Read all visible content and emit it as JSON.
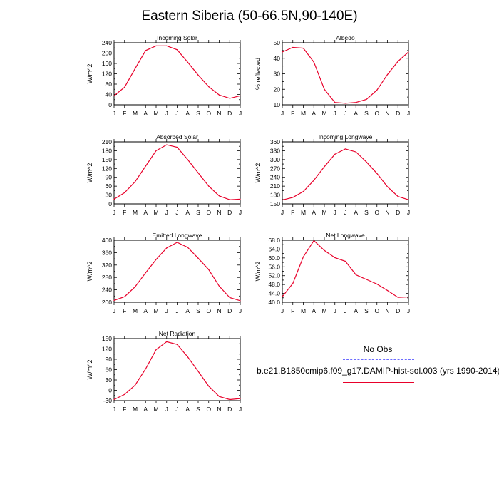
{
  "title": "Eastern Siberia (50-66.5N,90-140E)",
  "colors": {
    "model": "#e8002a",
    "obs": "#6b6bff",
    "axis": "#000000"
  },
  "legend": {
    "obs_label": "No Obs",
    "model_label": "b.e21.B1850cmip6.f09_g17.DAMIP-hist-sol.003 (yrs 1990-2014)"
  },
  "chart_data": [
    {
      "type": "line",
      "title": "Incoming Solar",
      "ylabel": "W/m^2",
      "x": [
        "J",
        "F",
        "M",
        "A",
        "M",
        "J",
        "J",
        "A",
        "S",
        "O",
        "N",
        "D",
        "J"
      ],
      "series": [
        {
          "values": [
            35,
            68,
            140,
            210,
            228,
            228,
            213,
            165,
            115,
            70,
            38,
            25,
            35
          ]
        }
      ],
      "ylim": [
        0,
        240
      ],
      "yticks": [
        "0",
        "20",
        "40",
        "60",
        "80",
        "100",
        "120",
        "140",
        "160",
        "180",
        "200",
        "220",
        "240"
      ],
      "ytick_labels": [
        "0",
        "",
        "40",
        "",
        "80",
        "",
        "120",
        "",
        "160",
        "",
        "200",
        "",
        "240"
      ]
    },
    {
      "type": "line",
      "title": "Albedo",
      "ylabel": "% reflected",
      "x": [
        "J",
        "F",
        "M",
        "A",
        "M",
        "J",
        "J",
        "A",
        "S",
        "O",
        "N",
        "D",
        "J"
      ],
      "series": [
        {
          "values": [
            44,
            47,
            46.5,
            37.5,
            20,
            11.5,
            11,
            11.5,
            13.5,
            19.5,
            29.5,
            38,
            44
          ]
        }
      ],
      "ylim": [
        10,
        50
      ],
      "yticks": [
        "10",
        "15",
        "20",
        "25",
        "30",
        "35",
        "40",
        "45",
        "50"
      ],
      "ytick_labels": [
        "10",
        "",
        "20",
        "",
        "30",
        "",
        "40",
        "",
        "50"
      ]
    },
    {
      "type": "line",
      "title": "Absorbed Solar",
      "ylabel": "W/m^2",
      "x": [
        "J",
        "F",
        "M",
        "A",
        "M",
        "J",
        "J",
        "A",
        "S",
        "O",
        "N",
        "D",
        "J"
      ],
      "series": [
        {
          "values": [
            16,
            38,
            75,
            128,
            180,
            200,
            192,
            150,
            105,
            60,
            27,
            14,
            16
          ]
        }
      ],
      "ylim": [
        0,
        210
      ],
      "yticks": [
        "0",
        "15",
        "30",
        "45",
        "60",
        "75",
        "90",
        "105",
        "120",
        "135",
        "150",
        "165",
        "180",
        "195",
        "210"
      ],
      "ytick_labels": [
        "0",
        "",
        "30",
        "",
        "60",
        "",
        "90",
        "",
        "120",
        "",
        "150",
        "",
        "180",
        "",
        "210"
      ]
    },
    {
      "type": "line",
      "title": "Incoming Longwave",
      "ylabel": "W/m^2",
      "x": [
        "J",
        "F",
        "M",
        "A",
        "M",
        "J",
        "J",
        "A",
        "S",
        "O",
        "N",
        "D",
        "J"
      ],
      "series": [
        {
          "values": [
            163,
            172,
            192,
            230,
            276,
            318,
            336,
            326,
            292,
            253,
            208,
            175,
            164
          ]
        }
      ],
      "ylim": [
        150,
        360
      ],
      "yticks": [
        "150",
        "165",
        "180",
        "195",
        "210",
        "225",
        "240",
        "255",
        "270",
        "285",
        "300",
        "315",
        "330",
        "345",
        "360"
      ],
      "ytick_labels": [
        "150",
        "",
        "180",
        "",
        "210",
        "",
        "240",
        "",
        "270",
        "",
        "300",
        "",
        "330",
        "",
        "360"
      ]
    },
    {
      "type": "line",
      "title": "Emitted Longwave",
      "ylabel": "W/m^2",
      "x": [
        "J",
        "F",
        "M",
        "A",
        "M",
        "J",
        "J",
        "A",
        "S",
        "O",
        "N",
        "D",
        "J"
      ],
      "series": [
        {
          "values": [
            206,
            218,
            250,
            295,
            338,
            375,
            393,
            377,
            342,
            305,
            252,
            215,
            205
          ]
        }
      ],
      "ylim": [
        200,
        400
      ],
      "yticks": [
        "200",
        "220",
        "240",
        "260",
        "280",
        "300",
        "320",
        "340",
        "360",
        "380",
        "400"
      ],
      "ytick_labels": [
        "200",
        "",
        "240",
        "",
        "280",
        "",
        "320",
        "",
        "360",
        "",
        "400"
      ]
    },
    {
      "type": "line",
      "title": "Net Longwave",
      "ylabel": "W/m^2",
      "x": [
        "J",
        "F",
        "M",
        "A",
        "M",
        "J",
        "J",
        "A",
        "S",
        "O",
        "N",
        "D",
        "J"
      ],
      "series": [
        {
          "values": [
            42.5,
            48.5,
            60.5,
            67.8,
            63.4,
            60.1,
            58.5,
            52.4,
            50.3,
            48.2,
            45.3,
            42.2,
            42.4
          ]
        }
      ],
      "ylim": [
        40,
        68
      ],
      "yticks": [
        "40.0",
        "42.0",
        "44.0",
        "46.0",
        "48.0",
        "50.0",
        "52.0",
        "54.0",
        "56.0",
        "58.0",
        "60.0",
        "62.0",
        "64.0",
        "66.0",
        "68.0"
      ],
      "ytick_labels": [
        "40.0",
        "",
        "44.0",
        "",
        "48.0",
        "",
        "52.0",
        "",
        "56.0",
        "",
        "60.0",
        "",
        "64.0",
        "",
        "68.0"
      ]
    },
    {
      "type": "line",
      "title": "Net Radiation",
      "ylabel": "W/m^2",
      "x": [
        "J",
        "F",
        "M",
        "A",
        "M",
        "J",
        "J",
        "A",
        "S",
        "O",
        "N",
        "D",
        "J"
      ],
      "series": [
        {
          "values": [
            -27,
            -12,
            15,
            62,
            118,
            141,
            133,
            97,
            55,
            12,
            -18,
            -27,
            -24
          ]
        }
      ],
      "ylim": [
        -30,
        150
      ],
      "yticks": [
        "-30",
        "-15",
        "0",
        "15",
        "30",
        "45",
        "60",
        "75",
        "90",
        "105",
        "120",
        "135",
        "150"
      ],
      "ytick_labels": [
        "-30",
        "",
        "0",
        "",
        "30",
        "",
        "60",
        "",
        "90",
        "",
        "120",
        "",
        "150"
      ]
    }
  ]
}
